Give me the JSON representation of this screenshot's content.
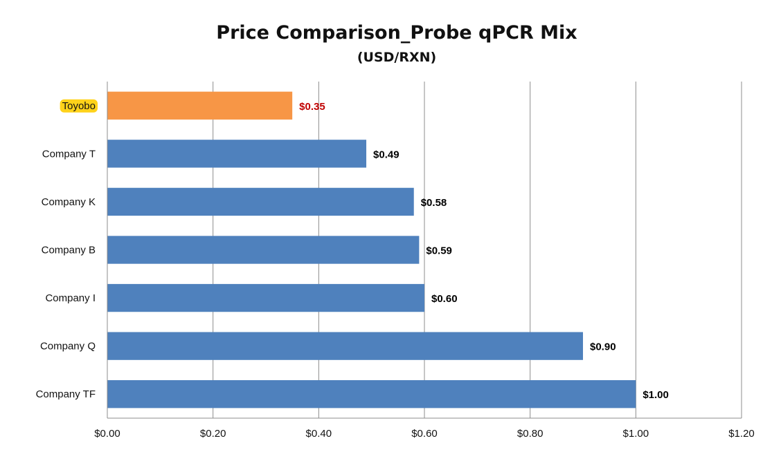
{
  "chart_data": {
    "type": "bar",
    "orientation": "horizontal",
    "title": "Price Comparison_Probe qPCR Mix",
    "subtitle": "(USD/RXN)",
    "xlabel": "",
    "ylabel": "",
    "categories": [
      "Toyobo",
      "Company T",
      "Company K",
      "Company B",
      "Company I",
      "Company Q",
      "Company TF"
    ],
    "values": [
      0.35,
      0.49,
      0.58,
      0.59,
      0.6,
      0.9,
      1.0
    ],
    "data_labels": [
      "$0.35",
      "$0.49",
      "$0.58",
      "$0.59",
      "$0.60",
      "$0.90",
      "$1.00"
    ],
    "xlim": [
      0,
      1.2
    ],
    "x_ticks": [
      0,
      0.2,
      0.4,
      0.6,
      0.8,
      1.0,
      1.2
    ],
    "x_tick_labels": [
      "$0.00",
      "$0.20",
      "$0.40",
      "$0.60",
      "$0.80",
      "$1.00",
      "$1.20"
    ],
    "grid": "vertical",
    "legend": "none",
    "highlight": {
      "category": "Toyobo",
      "bar_color": "#F79646",
      "label_highlight_color": "#FFD21A",
      "value_label_color": "#C00000"
    },
    "bar_color": "#4F81BD",
    "value_label_color": "#000000"
  }
}
